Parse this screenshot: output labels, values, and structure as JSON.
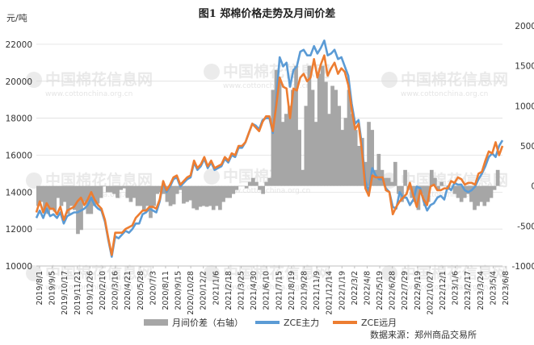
{
  "figure_title": "图1 郑棉价格走势及月间价差",
  "unit_label": "元/吨",
  "watermark": {
    "name": "中国棉花信息网",
    "url": "www.cottonchina.org.cn"
  },
  "source": "数据来源：郑州商品交易所",
  "colors": {
    "spread": "#a6a6a6",
    "main": "#5b9bd5",
    "far": "#ed7d31",
    "grid": "#d9d9d9"
  },
  "chart_data": {
    "type": "line",
    "title": "图1 郑棉价格走势及月间价差",
    "ylabel": "元/吨",
    "ylim": [
      10000,
      23000
    ],
    "y_ticks": [
      10000,
      12000,
      14000,
      16000,
      18000,
      20000,
      22000
    ],
    "y2lim": [
      -1000,
      2000
    ],
    "y2_ticks": [
      -1000,
      -500,
      0,
      500,
      1000,
      1500,
      2000
    ],
    "grid": true,
    "legend": "bottom",
    "x_ticks": [
      "2019/8/1",
      "2019/9/5",
      "2019/10/17",
      "2019/11/21",
      "2019/12/26",
      "2020/2/10",
      "2020/3/16",
      "2020/4/21",
      "2020/5/28",
      "2020/7/3",
      "2020/8/11",
      "2020/9/15",
      "2020/10/28",
      "2020/12/2",
      "2021/1/6",
      "2021/2/18",
      "2021/3/25",
      "2021/4/30",
      "2021/6/10",
      "2021/7/15",
      "2021/8/19",
      "2021/9/28",
      "2021/11/9",
      "2021/12/14",
      "2022/1/19",
      "2022/3/2",
      "2022/4/8",
      "2022/5/19",
      "2022/6/28",
      "2022/7/29",
      "2022/9/19",
      "2022/10/27",
      "2022/12/1",
      "2023/1/6",
      "2023/2/17",
      "2023/3/24",
      "2023/5/4",
      "2023/6/8"
    ],
    "series": [
      {
        "name": "月间价差（右轴）",
        "type": "area",
        "axis": "right",
        "values": [
          -250,
          -200,
          -300,
          -350,
          -300,
          -320,
          -150,
          -250,
          -200,
          -350,
          -250,
          -300,
          -600,
          -550,
          -200,
          -350,
          -350,
          -250,
          -220,
          -150,
          0,
          -80,
          -80,
          -100,
          -150,
          -50,
          -30,
          -150,
          -200,
          -150,
          -250,
          -250,
          -300,
          -250,
          -400,
          -250,
          -100,
          -80,
          -100,
          -200,
          -250,
          -230,
          -100,
          -50,
          -220,
          -200,
          -180,
          -280,
          -300,
          -260,
          -250,
          -260,
          -250,
          -300,
          -250,
          -300,
          -200,
          -150,
          -150,
          -100,
          -50,
          0,
          0,
          -30,
          50,
          100,
          50,
          -50,
          -100,
          50,
          100,
          1200,
          1450,
          1300,
          800,
          900,
          1000,
          1200,
          1500,
          700,
          200,
          1000,
          1500,
          1200,
          800,
          1400,
          1500,
          1300,
          900,
          1250,
          1200,
          1000,
          700,
          850,
          1200,
          900,
          700,
          500,
          600,
          300,
          800,
          700,
          200,
          400,
          200,
          100,
          100,
          50,
          300,
          -100,
          -200,
          200,
          -50,
          -150,
          -200,
          -300,
          -100,
          -250,
          -200,
          200,
          100,
          -50,
          50,
          0,
          -50,
          0,
          -100,
          -150,
          -200,
          -150,
          -100,
          -200,
          -300,
          -250,
          -200,
          -250,
          -200,
          -150,
          -50,
          200,
          0
        ]
      },
      {
        "name": "ZCE主力",
        "type": "line",
        "axis": "left",
        "values": [
          12600,
          13000,
          12600,
          13100,
          12700,
          12800,
          12600,
          12900,
          12300,
          12700,
          12800,
          12900,
          12900,
          13000,
          13100,
          13300,
          13700,
          13300,
          13100,
          13000,
          12400,
          11400,
          10500,
          11600,
          11500,
          11700,
          11900,
          11800,
          12000,
          12300,
          12300,
          12800,
          12900,
          13100,
          13000,
          12900,
          13500,
          14500,
          14000,
          14300,
          14700,
          14800,
          14300,
          14500,
          14700,
          14800,
          15600,
          15200,
          15400,
          15800,
          15300,
          15600,
          15200,
          15300,
          15400,
          15800,
          15600,
          16000,
          15900,
          16400,
          16400,
          16700,
          17200,
          17700,
          17600,
          17400,
          17900,
          18000,
          18000,
          17200,
          19000,
          21300,
          20800,
          21000,
          19700,
          20600,
          20800,
          21600,
          21700,
          21400,
          21400,
          21900,
          21500,
          21800,
          22200,
          21400,
          21500,
          21700,
          21200,
          21300,
          20800,
          20300,
          18800,
          17700,
          17900,
          16500,
          14600,
          14000,
          15300,
          14900,
          14700,
          14700,
          14200,
          14000,
          13200,
          13100,
          14000,
          13700,
          13700,
          13300,
          13600,
          14300,
          14200,
          13500,
          13000,
          13300,
          13400,
          13700,
          13800,
          13600,
          14300,
          14100,
          14500,
          14400,
          14400,
          14100,
          14000,
          14100,
          14300,
          14700,
          15000,
          15400,
          15900,
          16100,
          15900,
          16500,
          16800
        ]
      },
      {
        "name": "ZCE远月",
        "type": "line",
        "axis": "left",
        "values": [
          12900,
          13500,
          12900,
          13400,
          13100,
          13100,
          12800,
          13200,
          12500,
          13000,
          13100,
          13200,
          13500,
          13700,
          13300,
          13600,
          14000,
          13600,
          13300,
          13100,
          12500,
          11500,
          10600,
          11800,
          11800,
          11800,
          12000,
          12100,
          12200,
          12600,
          12800,
          13000,
          13000,
          13200,
          13200,
          13100,
          13600,
          14600,
          14100,
          14400,
          14800,
          14900,
          14400,
          14600,
          14800,
          14900,
          15700,
          15300,
          15500,
          15900,
          15400,
          15700,
          15300,
          15400,
          15500,
          15900,
          15700,
          16100,
          16000,
          16500,
          16500,
          16700,
          17200,
          17700,
          17500,
          17300,
          17800,
          18100,
          18100,
          17300,
          18700,
          20200,
          19700,
          19600,
          18000,
          19600,
          19500,
          20200,
          20400,
          20000,
          20200,
          21200,
          20200,
          20900,
          21400,
          20300,
          20700,
          21000,
          20400,
          20700,
          20500,
          19800,
          18500,
          17400,
          17700,
          16200,
          14200,
          13800,
          14900,
          14800,
          14800,
          14800,
          14100,
          14000,
          12800,
          13200,
          13500,
          13700,
          13900,
          14500,
          13800,
          13200,
          14100,
          13600,
          13300,
          14300,
          14400,
          14100,
          14100,
          14200,
          14200,
          14600,
          14500,
          14800,
          14700,
          14400,
          14500,
          14500,
          14400,
          15000,
          15100,
          15700,
          16200,
          16100,
          16700,
          16000,
          16500
        ]
      }
    ]
  }
}
